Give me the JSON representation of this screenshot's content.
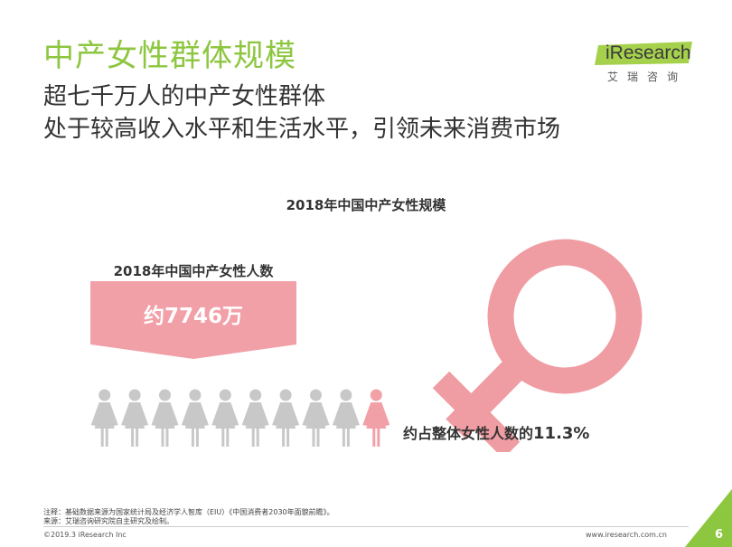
{
  "slide": {
    "title": "中产女性群体规模",
    "subtitle_line1": "超七千万人的中产女性群体",
    "subtitle_line2": "处于较高收入水平和生活水平，引领未来消费市场",
    "chart_title": "2018年中国中产女性规模",
    "left_label": "2018年中国中产女性人数",
    "count_value": "约7746万",
    "share_prefix": "约占整体女性人数的",
    "share_value": "11.3%",
    "note": "注释：基础数据来源为国家统计局及经济学人智库（EIU）《中国消费者2030年面貌前瞻》。",
    "source": "来源：艾瑞咨询研究院自主研究及绘制。",
    "copyright": "©2019.3 iResearch Inc",
    "website": "www.iresearch.com.cn",
    "page_number": "6"
  },
  "logo": {
    "brand": "iResearch",
    "brand_cn": "艾瑞咨询"
  },
  "pictogram": {
    "total_figures": 10,
    "highlighted_figures": 1,
    "highlight_color": "#f2a0a8",
    "base_color": "#c8c8c8"
  },
  "colors": {
    "title_green": "#8dc63f",
    "accent_pink": "#f2a0a8",
    "female_symbol": "#ef9ca3"
  },
  "icons": {
    "figures": "person-icon",
    "symbol": "female-symbol-icon"
  }
}
